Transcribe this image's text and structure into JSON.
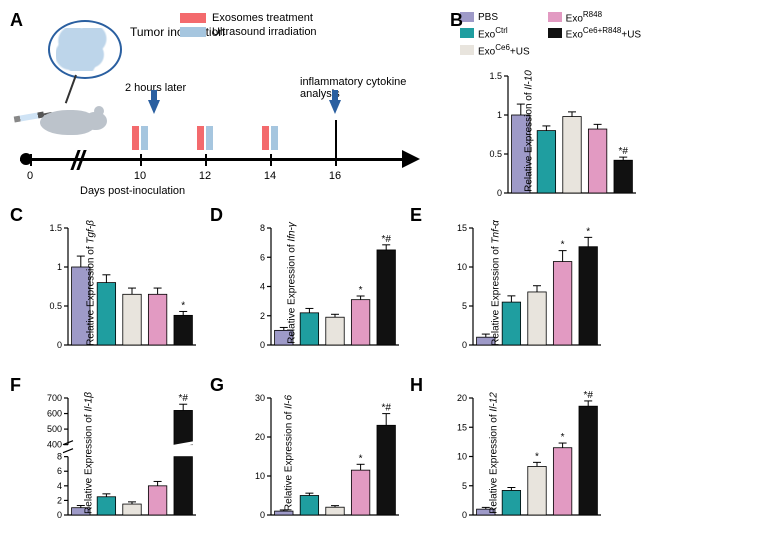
{
  "palette": {
    "pbs": "#9e9ac8",
    "exoCtrl": "#1f9ea0",
    "exoCe6US": "#e8e4dd",
    "exoR848": "#e29ac2",
    "exoCe6R848US": "#111111",
    "red": "#f36a6d",
    "blue": "#a6c6df"
  },
  "panelA": {
    "label": "A",
    "tumor_label": "Tumor\ninoculation",
    "legend": [
      {
        "color": "#f36a6d",
        "text": "Exosomes  treatment"
      },
      {
        "color": "#a6c6df",
        "text": "Ultrasound irradiation"
      }
    ],
    "two_hours": "2 hours later",
    "infl": "inflammatory cytokine\nanalysis",
    "xlabel": "Days post-inoculation",
    "ticks": [
      0,
      10,
      12,
      14,
      16
    ]
  },
  "group_legend": [
    {
      "color": "#9e9ac8",
      "label": "PBS"
    },
    {
      "color": "#e29ac2",
      "label_html": "Exo<sup>R848</sup>"
    },
    {
      "color": "#1f9ea0",
      "label_html": "Exo<sup>Ctrl</sup>"
    },
    {
      "color": "#111111",
      "label_html": "Exo<sup>Ce6+R848</sup>+US"
    },
    {
      "color": "#e8e4dd",
      "label_html": "Exo<sup>Ce6</sup>+US"
    }
  ],
  "charts": {
    "B": {
      "label": "B",
      "ylabel_html": "Relative Expression of <span class='italic'>Il-10</span>",
      "ylim": [
        0,
        1.5
      ],
      "ytick_step": 0.5,
      "values": [
        1.0,
        0.8,
        0.98,
        0.82,
        0.42
      ],
      "errors": [
        0.14,
        0.06,
        0.06,
        0.06,
        0.04
      ],
      "annotations": [
        "",
        "",
        "",
        "",
        "*#"
      ]
    },
    "C": {
      "label": "C",
      "ylabel_html": "Relative Expression of <span class='italic'>Tgf-β</span>",
      "ylim": [
        0,
        1.5
      ],
      "ytick_step": 0.5,
      "values": [
        1.0,
        0.8,
        0.65,
        0.65,
        0.38
      ],
      "errors": [
        0.14,
        0.1,
        0.08,
        0.08,
        0.05
      ],
      "annotations": [
        "",
        "",
        "",
        "",
        "*"
      ]
    },
    "D": {
      "label": "D",
      "ylabel_html": "Relative Expression of <span class='italic'>Ifn-γ</span>",
      "ylim": [
        0,
        8
      ],
      "ytick_step": 2,
      "values": [
        1.0,
        2.2,
        1.9,
        3.1,
        6.5
      ],
      "errors": [
        0.2,
        0.3,
        0.2,
        0.25,
        0.35
      ],
      "annotations": [
        "",
        "",
        "",
        "*",
        "*#"
      ]
    },
    "E": {
      "label": "E",
      "ylabel_html": "Relative Expression of <span class='italic'>Tnf-α</span>",
      "ylim": [
        0,
        15
      ],
      "ytick_step": 5,
      "values": [
        1.0,
        5.5,
        6.8,
        10.7,
        12.6
      ],
      "errors": [
        0.4,
        0.8,
        0.8,
        1.4,
        1.2
      ],
      "annotations": [
        "",
        "",
        "",
        "*",
        "*"
      ]
    },
    "F": {
      "label": "F",
      "ylabel_html": "Relative Expression of <span class='italic'>Il-1β</span>",
      "broken": true,
      "lower_ylim": [
        0,
        8
      ],
      "lower_ticks": [
        0,
        2,
        4,
        6,
        8
      ],
      "upper_ylim": [
        400,
        700
      ],
      "upper_ticks": [
        400,
        500,
        600,
        700
      ],
      "values": [
        1.0,
        2.5,
        1.5,
        4.0,
        620
      ],
      "errors": [
        0.3,
        0.4,
        0.3,
        0.6,
        40
      ],
      "annotations": [
        "",
        "",
        "",
        "",
        "*#"
      ]
    },
    "G": {
      "label": "G",
      "ylabel_html": "Relative Expression of <span class='italic'>Il-6</span>",
      "ylim": [
        0,
        30
      ],
      "ytick_step": 10,
      "values": [
        1.0,
        5.0,
        2.0,
        11.5,
        23.0
      ],
      "errors": [
        0.3,
        0.6,
        0.4,
        1.5,
        3.0
      ],
      "annotations": [
        "",
        "",
        "",
        "*",
        "*#"
      ]
    },
    "H": {
      "label": "H",
      "ylabel_html": "Relative Expression of <span class='italic'>Il-12</span>",
      "ylim": [
        0,
        20
      ],
      "ytick_step": 5,
      "values": [
        1.0,
        4.2,
        8.3,
        11.5,
        18.6
      ],
      "errors": [
        0.3,
        0.5,
        0.7,
        0.8,
        0.9
      ],
      "annotations": [
        "",
        "",
        "*",
        "*",
        "*#"
      ]
    }
  },
  "chart_layout": {
    "colors": [
      "#9e9ac8",
      "#1f9ea0",
      "#e8e4dd",
      "#e29ac2",
      "#111111"
    ],
    "bar_width": 0.7,
    "axis_color": "#000000",
    "error_color": "#000000",
    "label_fontsize": 10,
    "tick_fontsize": 9
  }
}
